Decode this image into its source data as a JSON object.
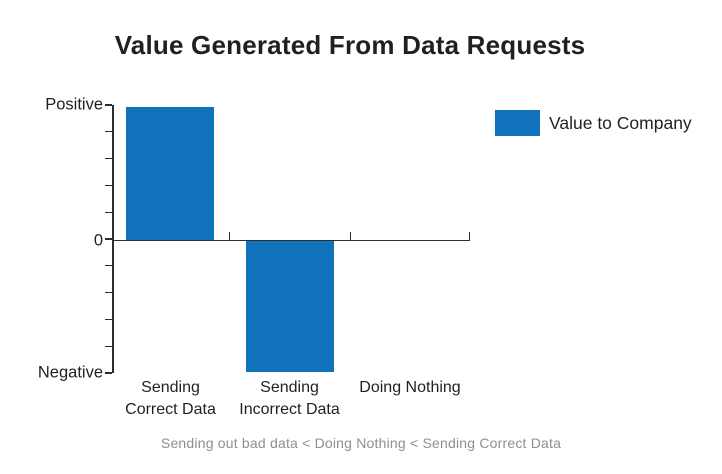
{
  "chart_data": {
    "type": "bar",
    "title": "Value Generated From Data Requests",
    "categories": [
      "Sending Correct Data",
      "Sending Incorrect Data",
      "Doing Nothing"
    ],
    "series": [
      {
        "name": "Value to Company",
        "color": "#0F72BA",
        "values": [
          1,
          -1,
          0
        ]
      }
    ],
    "y_axis": {
      "tick_labels": [
        "Positive",
        "0",
        "Negative"
      ],
      "ylim": [
        -1,
        1
      ],
      "minor_ticks_per_side": 5
    },
    "x_tick_display_lines": [
      [
        "Sending",
        "Correct Data"
      ],
      [
        "Sending",
        "Incorrect Data"
      ],
      [
        "Doing Nothing"
      ]
    ],
    "grid": false,
    "legend": {
      "position": "right",
      "label": "Value to Company"
    },
    "caption": "Sending out bad data < Doing Nothing < Sending Correct Data",
    "colors": {
      "bar": "#0F72BA",
      "axis": "#2E2D2C",
      "text": "#231F20",
      "caption_text": "#8F8F8F",
      "background": "#FFFFFF"
    }
  }
}
